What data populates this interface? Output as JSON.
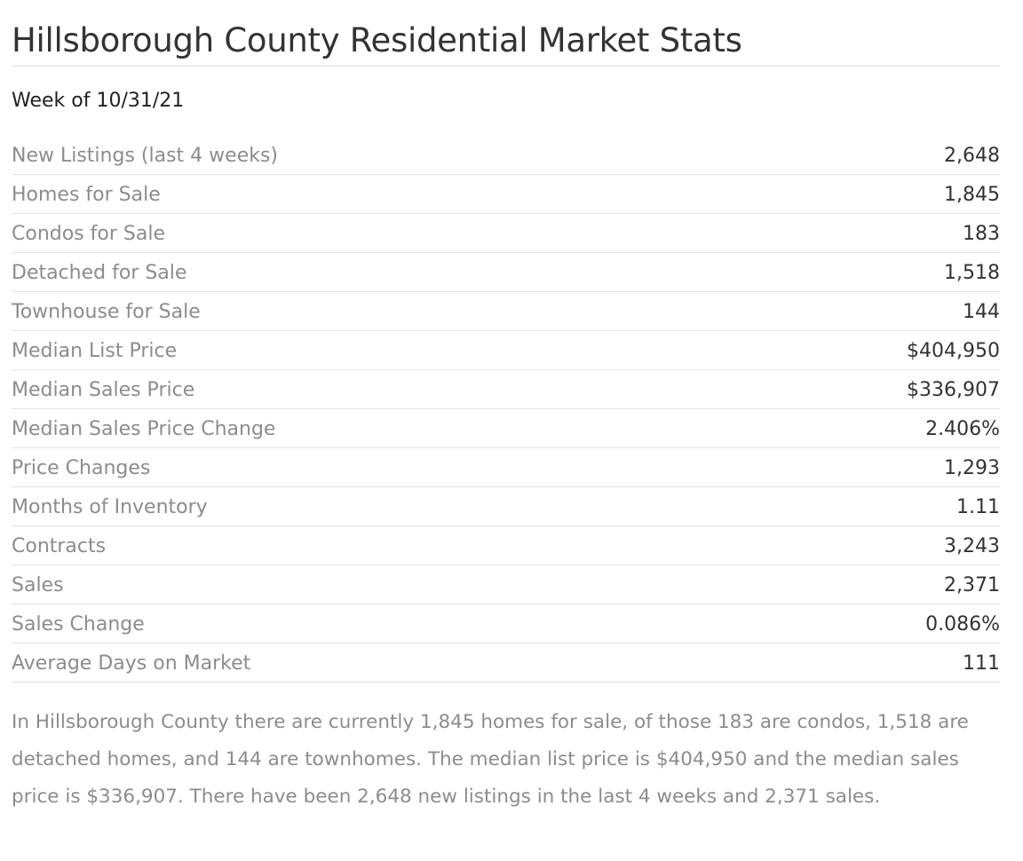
{
  "header": {
    "title": "Hillsborough County Residential Market Stats",
    "week": "Week of 10/31/21"
  },
  "stats": [
    {
      "label": "New Listings (last 4 weeks)",
      "value": "2,648"
    },
    {
      "label": "Homes for Sale",
      "value": "1,845"
    },
    {
      "label": "Condos for Sale",
      "value": "183"
    },
    {
      "label": "Detached for Sale",
      "value": "1,518"
    },
    {
      "label": "Townhouse for Sale",
      "value": "144"
    },
    {
      "label": "Median List Price",
      "value": "$404,950"
    },
    {
      "label": "Median Sales Price",
      "value": "$336,907"
    },
    {
      "label": "Median Sales Price Change",
      "value": "2.406%"
    },
    {
      "label": "Price Changes",
      "value": "1,293"
    },
    {
      "label": "Months of Inventory",
      "value": "1.11"
    },
    {
      "label": "Contracts",
      "value": "3,243"
    },
    {
      "label": "Sales",
      "value": "2,371"
    },
    {
      "label": "Sales Change",
      "value": "0.086%"
    },
    {
      "label": "Average Days on Market",
      "value": "111"
    }
  ],
  "summary": "In Hillsborough County there are currently 1,845 homes for sale, of those 183 are condos, 1,518 are detached homes, and 144 are townhomes. The median list price is $404,950 and the median sales price is $336,907. There have been 2,648 new listings in the last 4 weeks and 2,371 sales."
}
